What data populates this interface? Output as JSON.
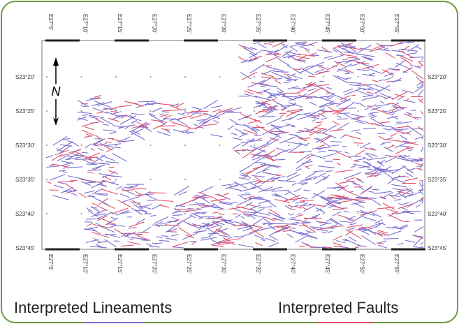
{
  "map": {
    "top_labels": [
      "E27°5'",
      "E27°10'",
      "E27°15'",
      "E27°20'",
      "E27°25'",
      "E27°30'",
      "E27°35'",
      "E27°40'",
      "E27°45'",
      "E27°50'",
      "E27°55'"
    ],
    "bottom_labels": [
      "E27°5'",
      "E27°10'",
      "E27°15'",
      "E27°20'",
      "E27°25'",
      "E27°30'",
      "E27°35'",
      "E27°40'",
      "E27°45'",
      "E27°50'",
      "E27°55'"
    ],
    "left_labels": [
      "S23°20'",
      "S23°25'",
      "S23°30'",
      "S23°35'",
      "S23°40'",
      "S23°45'"
    ],
    "right_labels": [
      "S23°20'",
      "S23°25'",
      "S23°30'",
      "S23°35'",
      "S23°40'",
      "S23°45'"
    ],
    "north_label": "N",
    "legend": [
      {
        "label": "Interpreted Lineaments"
      },
      {
        "label": "Interpreted Faults"
      }
    ]
  }
}
